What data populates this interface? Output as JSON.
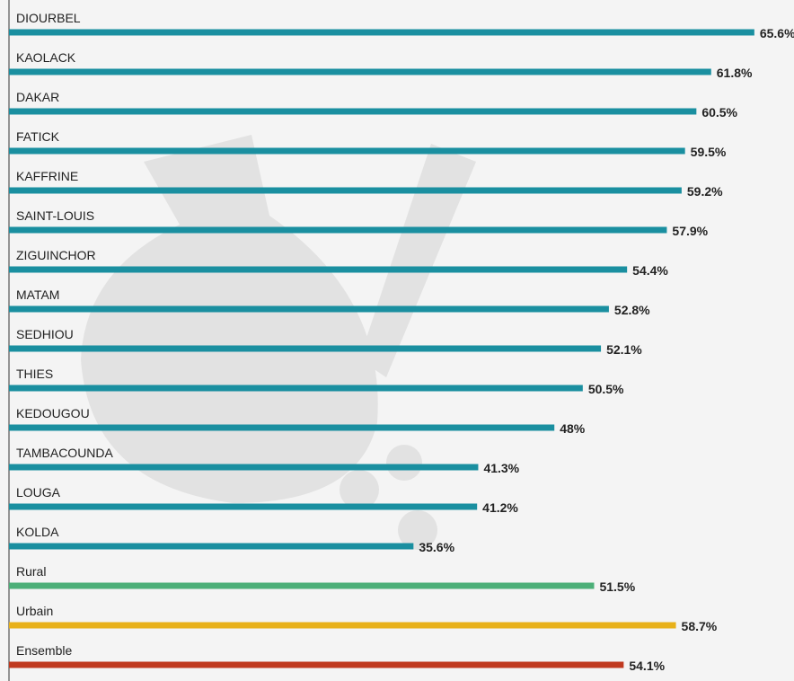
{
  "chart_data": {
    "type": "bar",
    "orientation": "horizontal",
    "categories": [
      "DIOURBEL",
      "KAOLACK",
      "DAKAR",
      "FATICK",
      "KAFFRINE",
      "SAINT-LOUIS",
      "ZIGUINCHOR",
      "MATAM",
      "SEDHIOU",
      "THIES",
      "KEDOUGOU",
      "TAMBACOUNDA",
      "LOUGA",
      "KOLDA",
      "Rural",
      "Urbain",
      "Ensemble"
    ],
    "values": [
      65.6,
      61.8,
      60.5,
      59.5,
      59.2,
      57.9,
      54.4,
      52.8,
      52.1,
      50.5,
      48,
      41.3,
      41.2,
      35.6,
      51.5,
      58.7,
      54.1
    ],
    "value_labels": [
      "65.6%",
      "61.8%",
      "60.5%",
      "59.5%",
      "59.2%",
      "57.9%",
      "54.4%",
      "52.8%",
      "52.1%",
      "50.5%",
      "48%",
      "41.3%",
      "41.2%",
      "35.6%",
      "51.5%",
      "58.7%",
      "54.1%"
    ],
    "colors": [
      "#1a8fa0",
      "#1a8fa0",
      "#1a8fa0",
      "#1a8fa0",
      "#1a8fa0",
      "#1a8fa0",
      "#1a8fa0",
      "#1a8fa0",
      "#1a8fa0",
      "#1a8fa0",
      "#1a8fa0",
      "#1a8fa0",
      "#1a8fa0",
      "#1a8fa0",
      "#4caf78",
      "#e8b11a",
      "#c0391f"
    ]
  }
}
